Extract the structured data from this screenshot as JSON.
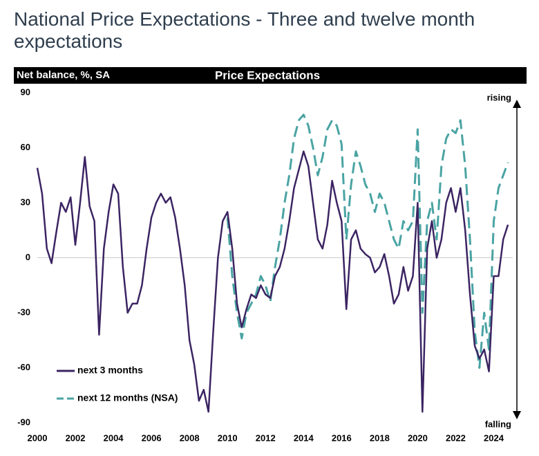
{
  "chart_data": {
    "type": "line",
    "title": "National Price Expectations - Three and twelve month expectations",
    "header_left": "Net balance, %, SA",
    "header_center": "Price Expectations",
    "annotations": [
      "rising",
      "falling"
    ],
    "x": [
      2000.0,
      2000.25,
      2000.5,
      2000.75,
      2001.0,
      2001.25,
      2001.5,
      2001.75,
      2002.0,
      2002.25,
      2002.5,
      2002.75,
      2003.0,
      2003.25,
      2003.5,
      2003.75,
      2004.0,
      2004.25,
      2004.5,
      2004.75,
      2005.0,
      2005.25,
      2005.5,
      2005.75,
      2006.0,
      2006.25,
      2006.5,
      2006.75,
      2007.0,
      2007.25,
      2007.5,
      2007.75,
      2008.0,
      2008.25,
      2008.5,
      2008.75,
      2009.0,
      2009.25,
      2009.5,
      2009.75,
      2010.0,
      2010.25,
      2010.5,
      2010.75,
      2011.0,
      2011.25,
      2011.5,
      2011.75,
      2012.0,
      2012.25,
      2012.5,
      2012.75,
      2013.0,
      2013.25,
      2013.5,
      2013.75,
      2014.0,
      2014.25,
      2014.5,
      2014.75,
      2015.0,
      2015.25,
      2015.5,
      2015.75,
      2016.0,
      2016.25,
      2016.5,
      2016.75,
      2017.0,
      2017.25,
      2017.5,
      2017.75,
      2018.0,
      2018.25,
      2018.5,
      2018.75,
      2019.0,
      2019.25,
      2019.5,
      2019.75,
      2020.0,
      2020.25,
      2020.5,
      2020.75,
      2021.0,
      2021.25,
      2021.5,
      2021.75,
      2022.0,
      2022.25,
      2022.5,
      2022.75,
      2023.0,
      2023.25,
      2023.5,
      2023.75,
      2024.0,
      2024.25,
      2024.5,
      2024.75
    ],
    "series": [
      {
        "name": "next 3 months",
        "color": "#3b2462",
        "dashed": false,
        "values": [
          49,
          35,
          5,
          -3,
          14,
          30,
          25,
          33,
          7,
          30,
          55,
          28,
          20,
          -42,
          5,
          25,
          40,
          35,
          -5,
          -30,
          -25,
          -25,
          -15,
          5,
          22,
          30,
          35,
          30,
          33,
          22,
          5,
          -15,
          -45,
          -58,
          -78,
          -72,
          -84,
          -40,
          0,
          20,
          25,
          5,
          -25,
          -38,
          -28,
          -20,
          -22,
          -15,
          -20,
          -22,
          -10,
          -5,
          5,
          20,
          38,
          48,
          58,
          50,
          30,
          10,
          5,
          18,
          42,
          30,
          20,
          -28,
          10,
          15,
          5,
          2,
          0,
          -8,
          -5,
          2,
          -10,
          -25,
          -20,
          -5,
          -18,
          -10,
          30,
          -84,
          5,
          20,
          0,
          10,
          30,
          38,
          25,
          38,
          15,
          -20,
          -48,
          -55,
          -50,
          -62,
          -10,
          -10,
          10,
          18
        ]
      },
      {
        "name": "next 12 months (NSA)",
        "color": "#4aa3a3",
        "dashed": true,
        "values": [
          null,
          null,
          null,
          null,
          null,
          null,
          null,
          null,
          null,
          null,
          null,
          null,
          null,
          null,
          null,
          null,
          null,
          null,
          null,
          null,
          null,
          null,
          null,
          null,
          null,
          null,
          null,
          null,
          null,
          null,
          null,
          null,
          null,
          null,
          null,
          null,
          null,
          null,
          null,
          null,
          22,
          -10,
          -30,
          -44,
          -30,
          -25,
          -20,
          -10,
          -15,
          -24,
          -5,
          10,
          30,
          45,
          65,
          75,
          78,
          72,
          60,
          45,
          55,
          70,
          75,
          72,
          62,
          10,
          40,
          58,
          50,
          40,
          35,
          25,
          35,
          30,
          20,
          10,
          5,
          20,
          15,
          20,
          70,
          -30,
          20,
          30,
          10,
          50,
          65,
          70,
          68,
          75,
          50,
          10,
          -40,
          -60,
          -30,
          -50,
          20,
          38,
          45,
          52
        ]
      }
    ],
    "xlim": [
      2000,
      2025
    ],
    "xticks": [
      2000,
      2002,
      2004,
      2006,
      2008,
      2010,
      2012,
      2014,
      2016,
      2018,
      2020,
      2022,
      2024
    ],
    "ylim": [
      -90,
      90
    ],
    "yticks": [
      -90,
      -60,
      -30,
      0,
      30,
      60,
      90
    ],
    "zero_line": true,
    "legend": "lower left"
  }
}
